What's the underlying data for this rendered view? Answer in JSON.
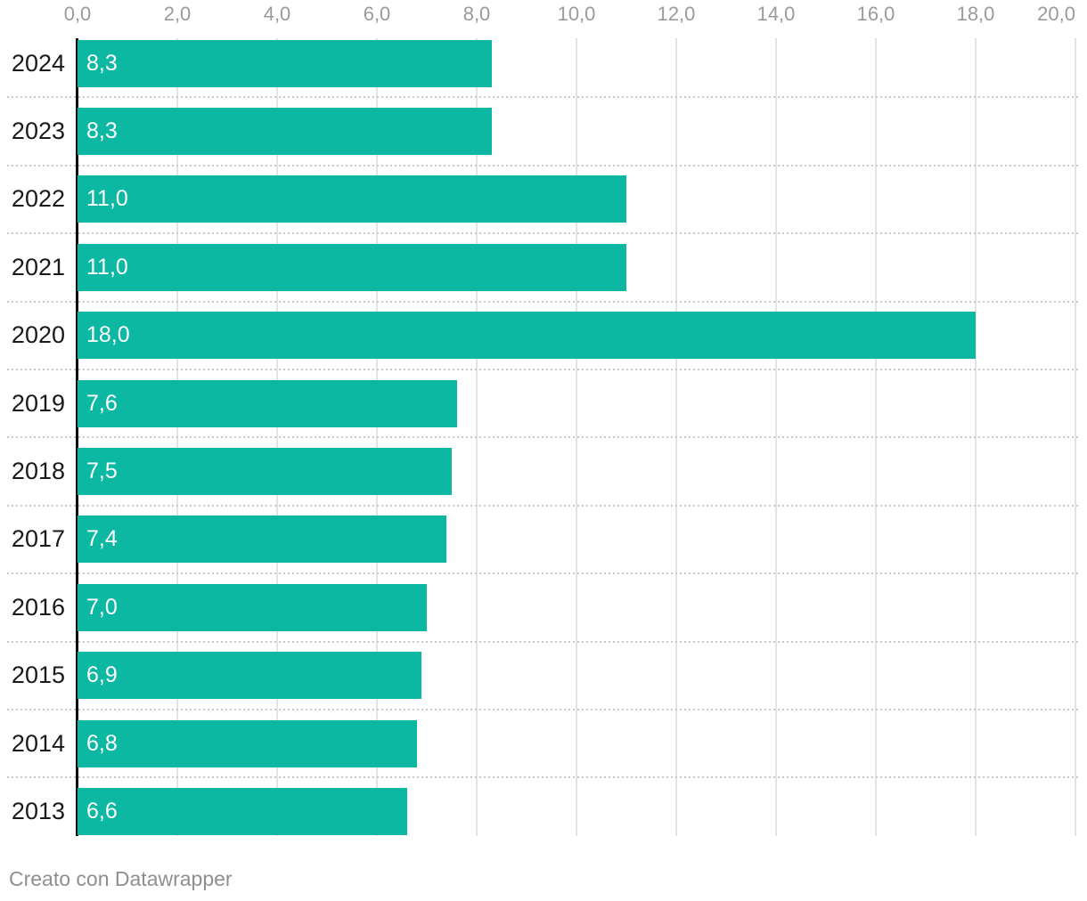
{
  "chart_data": {
    "type": "bar",
    "orientation": "horizontal",
    "categories": [
      "2024",
      "2023",
      "2022",
      "2021",
      "2020",
      "2019",
      "2018",
      "2017",
      "2016",
      "2015",
      "2014",
      "2013"
    ],
    "values": [
      8.3,
      8.3,
      11.0,
      11.0,
      18.0,
      7.6,
      7.5,
      7.4,
      7.0,
      6.9,
      6.8,
      6.6
    ],
    "value_labels": [
      "8,3",
      "8,3",
      "11,0",
      "11,0",
      "18,0",
      "7,6",
      "7,5",
      "7,4",
      "7,0",
      "6,9",
      "6,8",
      "6,6"
    ],
    "xlim": [
      0,
      20
    ],
    "x_ticks": [
      0,
      2,
      4,
      6,
      8,
      10,
      12,
      14,
      16,
      18,
      20
    ],
    "x_tick_labels": [
      "0,0",
      "2,0",
      "4,0",
      "6,0",
      "8,0",
      "10,0",
      "12,0",
      "14,0",
      "16,0",
      "18,0",
      "20,0"
    ],
    "grid": true,
    "legend": "none",
    "row_separators": "dotted"
  },
  "colors": {
    "bar": "#0cb8a2",
    "bar_value_text": "#ffffff",
    "tick_text": "#9b9b9b",
    "category_text": "#1a1a1a",
    "gridline": "#e3e3e3",
    "separator": "#c9c9c9",
    "axis_line": "#0d0d0d",
    "background": "#ffffff",
    "footer_text": "#8f8f8f"
  },
  "footer": {
    "credit": "Creato con Datawrapper"
  }
}
